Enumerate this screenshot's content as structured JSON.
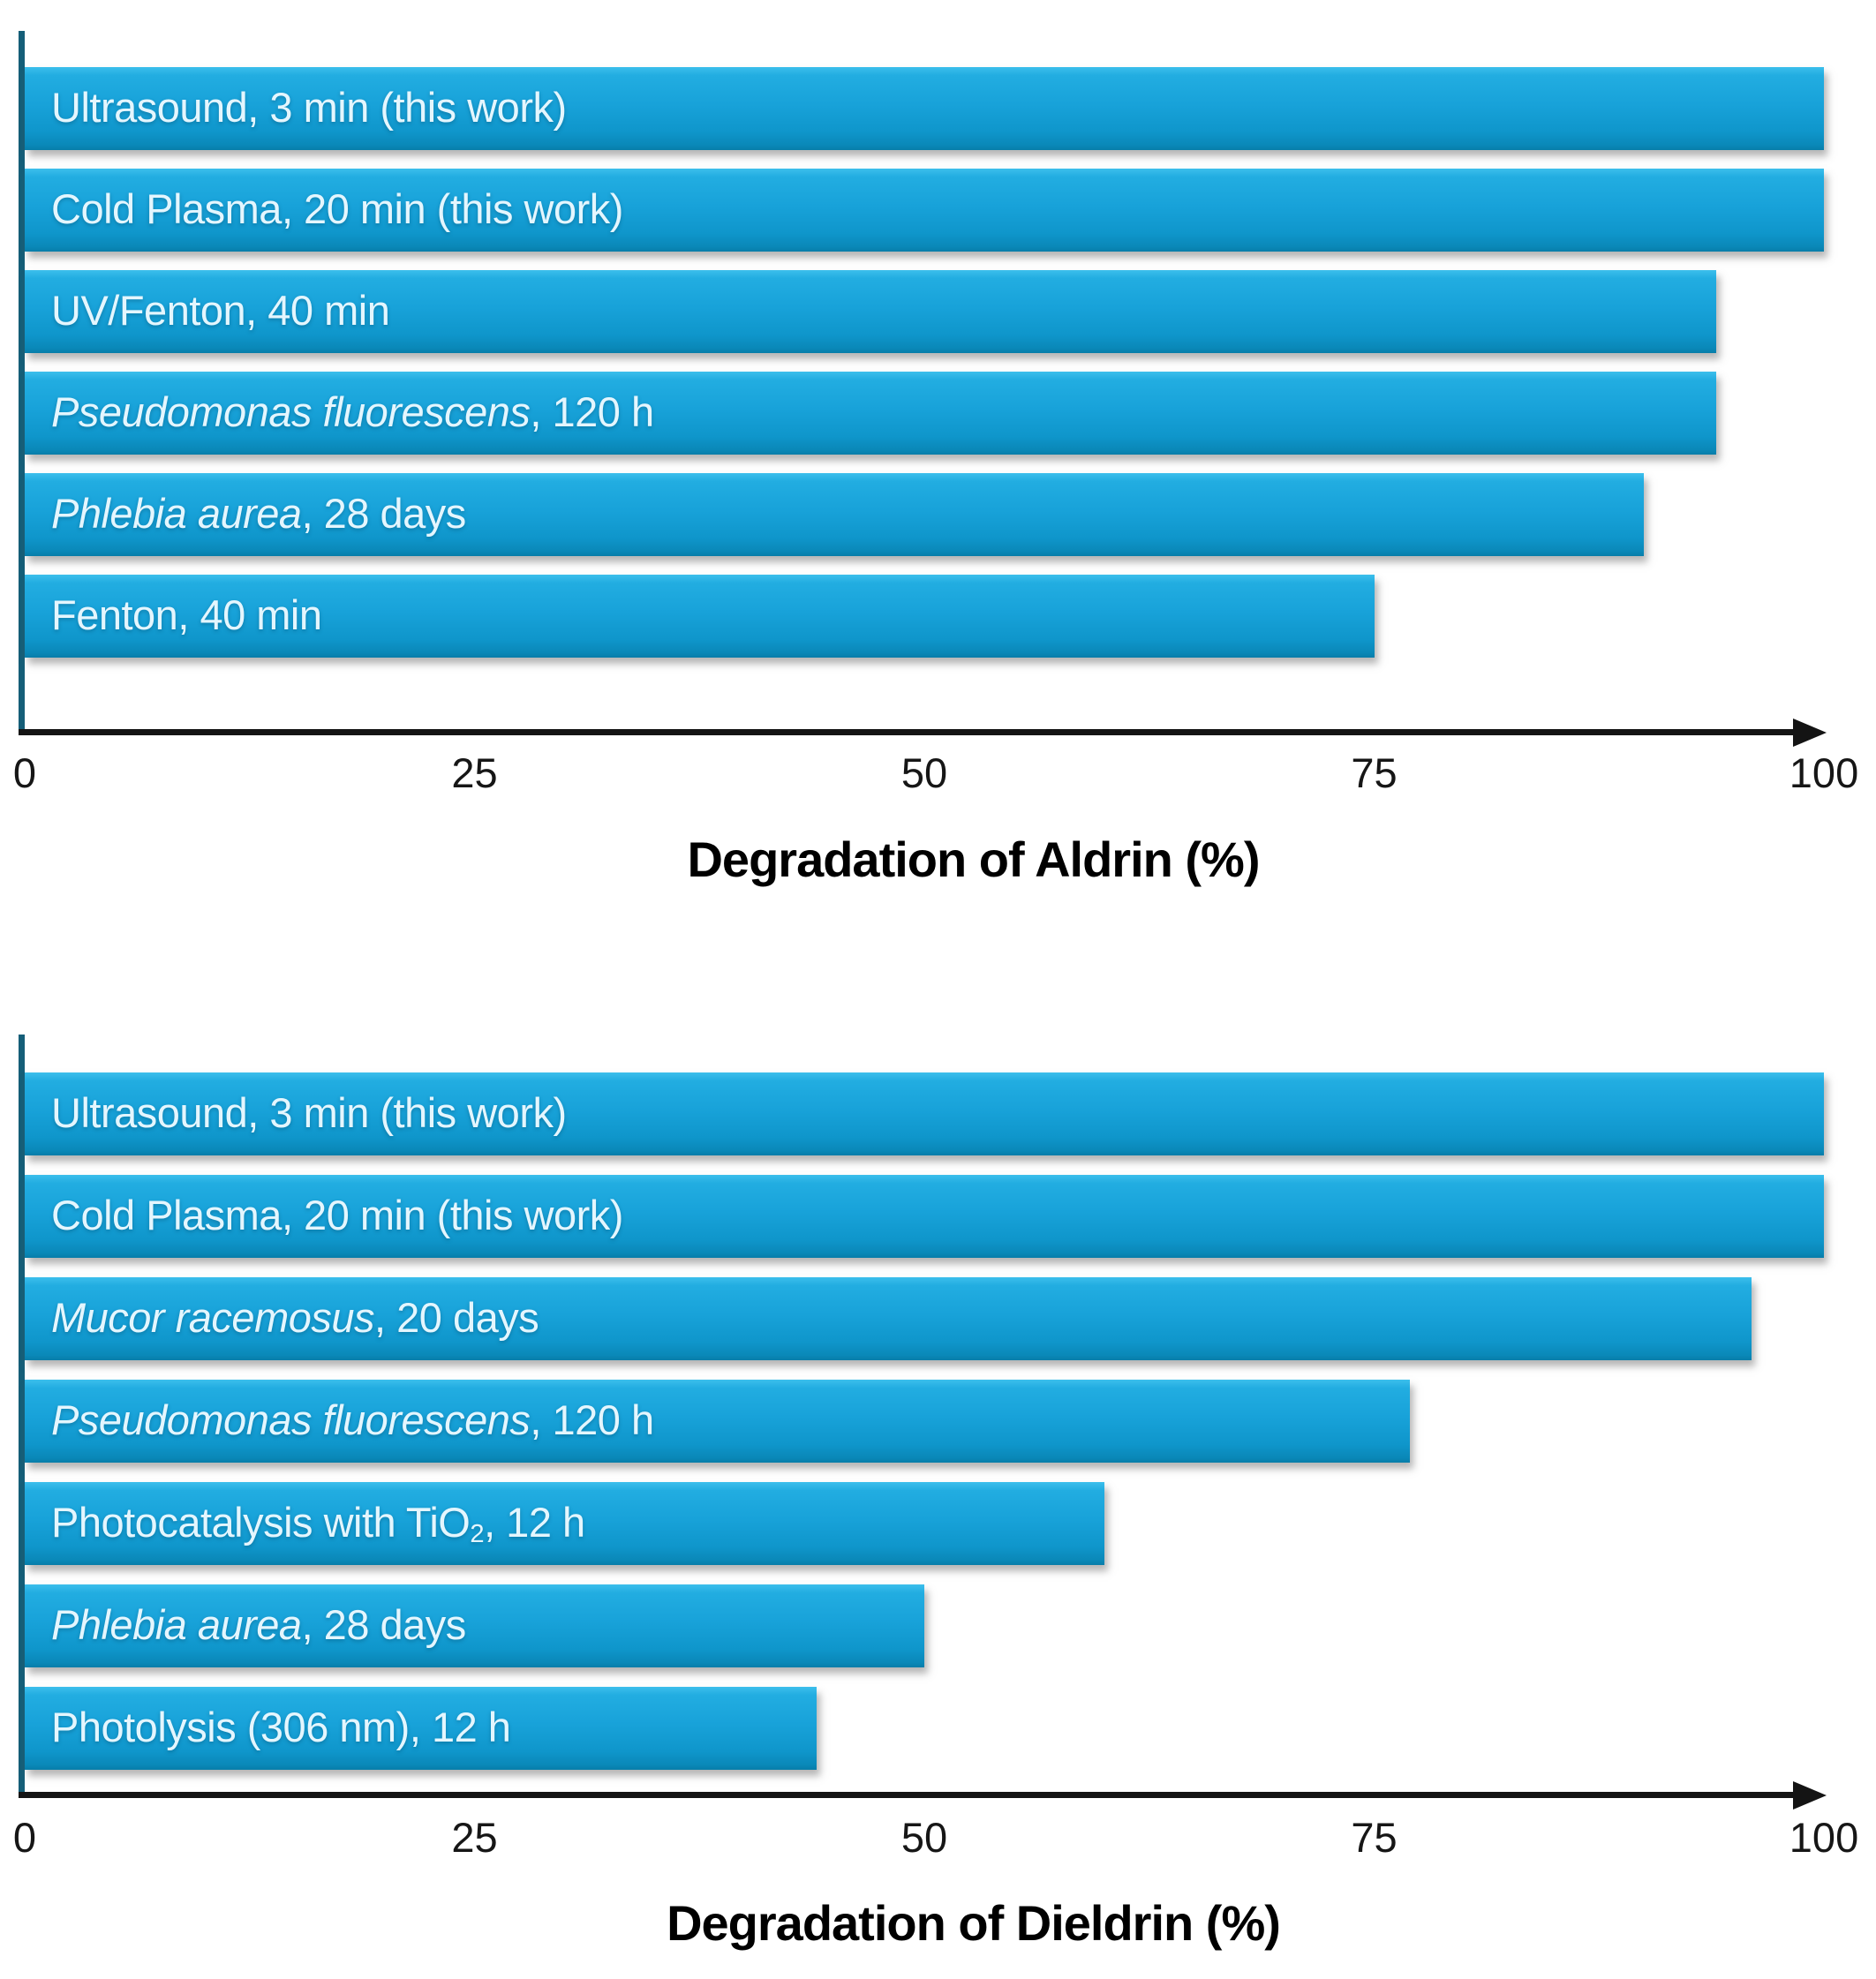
{
  "figure": {
    "background": "#ffffff",
    "bar_color_top": "#3cbfec",
    "bar_color_mid": "#18a2d9",
    "bar_color_bottom": "#077da9",
    "bar_label_color": "#e4f6fe",
    "y_axis_color": "#155e78",
    "x_axis_color": "#141414",
    "tick_color": "#161616",
    "title_color": "#000000"
  },
  "chart_data": [
    {
      "type": "bar",
      "orientation": "horizontal",
      "title": "Degradation of Aldrin (%)",
      "xlabel": "Degradation of Aldrin (%)",
      "ylabel": "",
      "xlim": [
        0,
        100
      ],
      "x_ticks": [
        0,
        25,
        50,
        75,
        100
      ],
      "grid": false,
      "legend": "none",
      "bar_color": "#18a2d9",
      "categories": [
        "Ultrasound, 3 min (this work)",
        "Cold Plasma, 20 min (this work)",
        "UV/Fenton, 40 min",
        "Pseudomonas fluorescens, 120 h",
        "Phlebia aurea, 28 days",
        "Fenton, 40 min"
      ],
      "values": [
        100,
        100,
        94,
        94,
        90,
        75
      ],
      "bars": [
        {
          "value": 100,
          "segments": [
            {
              "t": "Ultrasound, 3 min (this work)"
            }
          ]
        },
        {
          "value": 100,
          "segments": [
            {
              "t": "Cold Plasma, 20 min (this work)"
            }
          ]
        },
        {
          "value": 94,
          "segments": [
            {
              "t": "UV/Fenton, 40 min"
            }
          ]
        },
        {
          "value": 94,
          "segments": [
            {
              "t": "Pseudomonas fluorescens",
              "i": true
            },
            {
              "t": ", 120 h"
            }
          ]
        },
        {
          "value": 90,
          "segments": [
            {
              "t": "Phlebia aurea",
              "i": true
            },
            {
              "t": ", 28 days"
            }
          ]
        },
        {
          "value": 75,
          "segments": [
            {
              "t": "Fenton, 40 min"
            }
          ]
        }
      ]
    },
    {
      "type": "bar",
      "orientation": "horizontal",
      "title": "Degradation of Dieldrin (%)",
      "xlabel": "Degradation of Dieldrin (%)",
      "ylabel": "",
      "xlim": [
        0,
        100
      ],
      "x_ticks": [
        0,
        25,
        50,
        75,
        100
      ],
      "grid": false,
      "legend": "none",
      "bar_color": "#18a2d9",
      "categories": [
        "Ultrasound, 3 min (this work)",
        "Cold Plasma, 20 min (this work)",
        "Mucor racemosus, 20 days",
        "Pseudomonas fluorescens, 120 h",
        "Photocatalysis with TiO₂, 12 h",
        "Phlebia aurea, 28 days",
        "Photolysis (306 nm), 12 h"
      ],
      "values": [
        100,
        100,
        96,
        77,
        60,
        50,
        44
      ],
      "bars": [
        {
          "value": 100,
          "segments": [
            {
              "t": "Ultrasound, 3 min (this work)"
            }
          ]
        },
        {
          "value": 100,
          "segments": [
            {
              "t": "Cold Plasma, 20 min (this work)"
            }
          ]
        },
        {
          "value": 96,
          "segments": [
            {
              "t": "Mucor racemosus",
              "i": true
            },
            {
              "t": ", 20 days"
            }
          ]
        },
        {
          "value": 77,
          "segments": [
            {
              "t": "Pseudomonas fluorescens",
              "i": true
            },
            {
              "t": ", 120 h"
            }
          ]
        },
        {
          "value": 60,
          "segments": [
            {
              "t": "Photocatalysis with TiO"
            },
            {
              "t": "2",
              "sub": true
            },
            {
              "t": ", 12 h"
            }
          ]
        },
        {
          "value": 50,
          "segments": [
            {
              "t": "Phlebia aurea",
              "i": true
            },
            {
              "t": ", 28 days"
            }
          ]
        },
        {
          "value": 44,
          "segments": [
            {
              "t": "Photolysis (306 nm), 12 h"
            }
          ]
        }
      ]
    }
  ]
}
